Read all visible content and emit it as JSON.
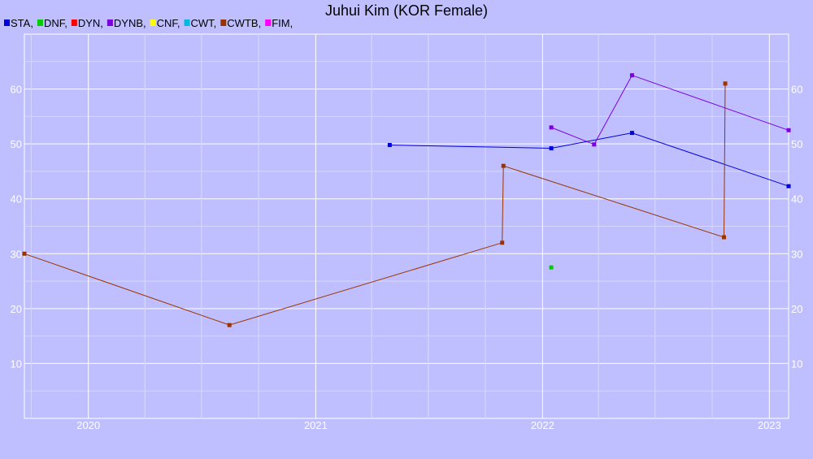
{
  "chart_data": {
    "type": "line",
    "title": "Juhui Kim (KOR Female)",
    "xlabel": "",
    "ylabel": "",
    "x_axis": {
      "type": "date",
      "range": [
        "2019-09-20",
        "2023-02-01"
      ],
      "ticks": [
        {
          "label": "2020",
          "value": "2020-01-01"
        },
        {
          "label": "2021",
          "value": "2021-01-01"
        },
        {
          "label": "2022",
          "value": "2022-01-01"
        },
        {
          "label": "2023",
          "value": "2023-01-01"
        }
      ]
    },
    "y_axis": {
      "range": [
        0,
        70
      ],
      "ticks": [
        10,
        20,
        30,
        40,
        50,
        60
      ]
    },
    "grid": true,
    "legend_position": "top-left",
    "legend": [
      {
        "name": "STA,",
        "color": "#0000dd"
      },
      {
        "name": "DNF,",
        "color": "#00cc00"
      },
      {
        "name": "DYN,",
        "color": "#ff0000"
      },
      {
        "name": "DYNB,",
        "color": "#7b00dd"
      },
      {
        "name": "CNF,",
        "color": "#ffff00"
      },
      {
        "name": "CWT,",
        "color": "#00bbdd"
      },
      {
        "name": "CWTB,",
        "color": "#993300"
      },
      {
        "name": "FIM,",
        "color": "#ff00ff"
      }
    ],
    "series": [
      {
        "name": "STA,",
        "color": "#0000dd",
        "points": [
          {
            "x": "2021-04-30",
            "y": 49.8
          },
          {
            "x": "2022-01-15",
            "y": 49.2
          },
          {
            "x": "2022-05-25",
            "y": 52.0
          },
          {
            "x": "2023-02-01",
            "y": 42.3
          }
        ]
      },
      {
        "name": "DNF,",
        "color": "#00cc00",
        "points": [
          {
            "x": "2022-01-15",
            "y": 27.5
          }
        ]
      },
      {
        "name": "DYNB,",
        "color": "#7b00dd",
        "points": [
          {
            "x": "2022-01-15",
            "y": 53.0
          },
          {
            "x": "2022-03-25",
            "y": 49.9
          },
          {
            "x": "2022-05-25",
            "y": 62.5
          },
          {
            "x": "2023-02-01",
            "y": 52.5
          }
        ]
      },
      {
        "name": "CWTB,",
        "color": "#993300",
        "points": [
          {
            "x": "2019-09-20",
            "y": 30.0
          },
          {
            "x": "2020-08-15",
            "y": 17.0
          },
          {
            "x": "2021-10-28",
            "y": 32.0
          },
          {
            "x": "2021-10-30",
            "y": 46.0
          },
          {
            "x": "2022-10-20",
            "y": 33.0
          },
          {
            "x": "2022-10-22",
            "y": 61.0
          }
        ]
      }
    ]
  }
}
